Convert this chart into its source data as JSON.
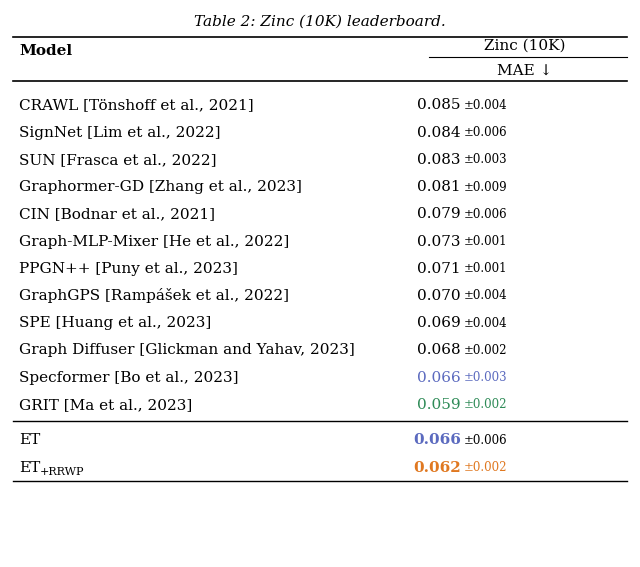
{
  "title": "Table 2: Zinc (10K) leaderboard.",
  "col_header_1": "Model",
  "col_header_2": "Zinc (10K)",
  "col_header_2_sub": "MAE ↓",
  "rows": [
    {
      "model": "CRAWL [Tönshoff et al., 2021]",
      "mae": "0.085",
      "std": "±0.004",
      "model_color": "#000000",
      "mae_color": "#000000",
      "std_color": "#000000"
    },
    {
      "model": "SignNet [Lim et al., 2022]",
      "mae": "0.084",
      "std": "±0.006",
      "model_color": "#000000",
      "mae_color": "#000000",
      "std_color": "#000000"
    },
    {
      "model": "SUN [Frasca et al., 2022]",
      "mae": "0.083",
      "std": "±0.003",
      "model_color": "#000000",
      "mae_color": "#000000",
      "std_color": "#000000"
    },
    {
      "model": "Graphormer-GD [Zhang et al., 2023]",
      "mae": "0.081",
      "std": "±0.009",
      "model_color": "#000000",
      "mae_color": "#000000",
      "std_color": "#000000"
    },
    {
      "model": "CIN [Bodnar et al., 2021]",
      "mae": "0.079",
      "std": "±0.006",
      "model_color": "#000000",
      "mae_color": "#000000",
      "std_color": "#000000"
    },
    {
      "model": "Graph-MLP-Mixer [He et al., 2022]",
      "mae": "0.073",
      "std": "±0.001",
      "model_color": "#000000",
      "mae_color": "#000000",
      "std_color": "#000000"
    },
    {
      "model": "PPGN++ [Puny et al., 2023]",
      "mae": "0.071",
      "std": "±0.001",
      "model_color": "#000000",
      "mae_color": "#000000",
      "std_color": "#000000"
    },
    {
      "model": "GraphGPS [Rampášek et al., 2022]",
      "mae": "0.070",
      "std": "±0.004",
      "model_color": "#000000",
      "mae_color": "#000000",
      "std_color": "#000000"
    },
    {
      "model": "SPE [Huang et al., 2023]",
      "mae": "0.069",
      "std": "±0.004",
      "model_color": "#000000",
      "mae_color": "#000000",
      "std_color": "#000000"
    },
    {
      "model": "Graph Diffuser [Glickman and Yahav, 2023]",
      "mae": "0.068",
      "std": "±0.002",
      "model_color": "#000000",
      "mae_color": "#000000",
      "std_color": "#000000"
    },
    {
      "model": "Specformer [Bo et al., 2023]",
      "mae": "0.066",
      "std": "±0.003",
      "model_color": "#000000",
      "mae_color": "#5b6abf",
      "std_color": "#5b6abf"
    },
    {
      "model": "GRIT [Ma et al., 2023]",
      "mae": "0.059",
      "std": "±0.002",
      "model_color": "#000000",
      "mae_color": "#2e8b57",
      "std_color": "#2e8b57"
    }
  ],
  "our_rows": [
    {
      "model": "ET",
      "mae": "0.066",
      "std": "±0.006",
      "model_color": "#000000",
      "mae_color": "#5b6abf",
      "std_color": "#000000"
    },
    {
      "model": "ET_{+RRWP}",
      "mae": "0.062",
      "std": "±0.002",
      "model_color": "#000000",
      "mae_color": "#e07820",
      "std_color": "#e07820"
    }
  ],
  "bg_color": "#ffffff",
  "font_size": 11,
  "header_font_size": 11
}
